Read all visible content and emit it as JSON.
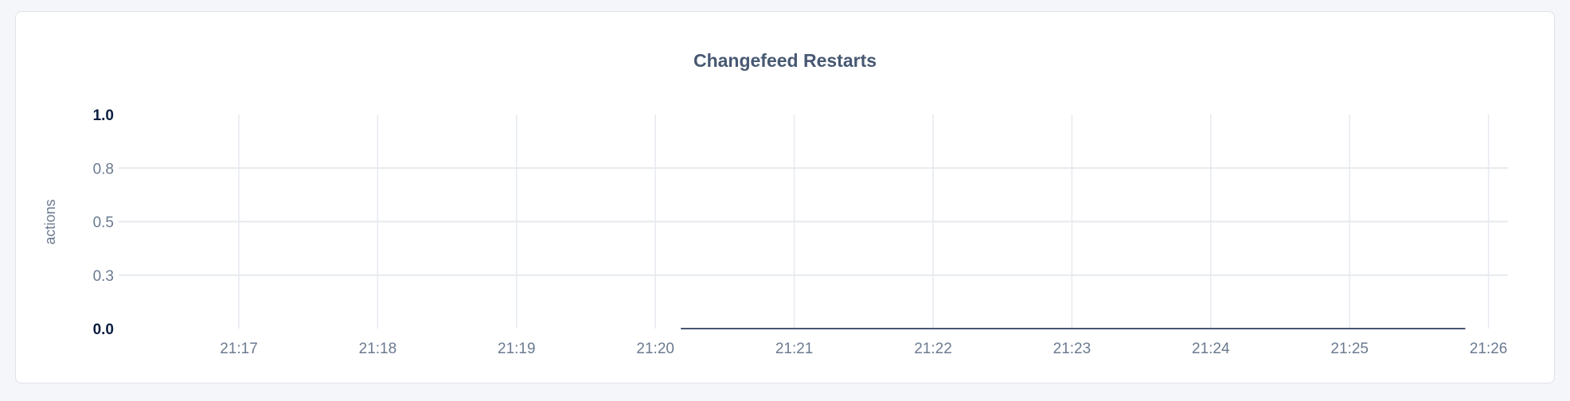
{
  "chart_data": {
    "type": "line",
    "title": "Changefeed Restarts",
    "ylabel": "actions",
    "xlabel": "",
    "ylim": [
      0,
      1
    ],
    "y_ticks": [
      {
        "value": 0,
        "label": "0.0",
        "bold": true
      },
      {
        "value": 0.25,
        "label": "0.3"
      },
      {
        "value": 0.5,
        "label": "0.5"
      },
      {
        "value": 0.75,
        "label": "0.8"
      },
      {
        "value": 1,
        "label": "1.0",
        "bold": true
      }
    ],
    "x_ticks": [
      "21:17",
      "21:18",
      "21:19",
      "21:20",
      "21:21",
      "21:22",
      "21:23",
      "21:24",
      "21:25",
      "21:26"
    ],
    "xlim": [
      "21:16:09",
      "21:26:14"
    ],
    "grid": true,
    "series": [
      {
        "color": "#475872",
        "points": [
          [
            "21:20:11",
            0
          ],
          [
            "21:25:50",
            0
          ]
        ]
      }
    ]
  }
}
